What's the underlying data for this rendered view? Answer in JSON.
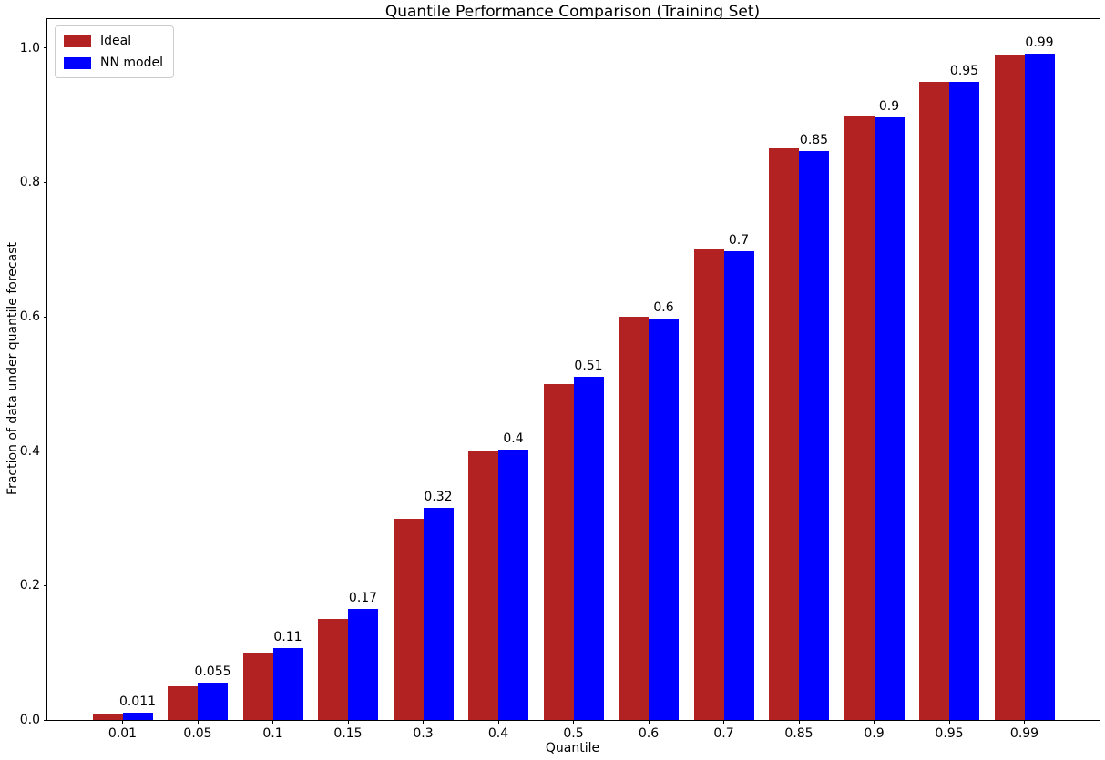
{
  "chart_data": {
    "type": "bar",
    "title": "Quantile Performance Comparison (Training Set)",
    "xlabel": "Quantile",
    "ylabel": "Fraction of data under quantile forecast",
    "categories": [
      "0.01",
      "0.05",
      "0.1",
      "0.15",
      "0.3",
      "0.4",
      "0.5",
      "0.6",
      "0.7",
      "0.85",
      "0.9",
      "0.95",
      "0.99"
    ],
    "series": [
      {
        "name": "Ideal",
        "color": "#b22222",
        "values": [
          0.01,
          0.05,
          0.1,
          0.15,
          0.3,
          0.4,
          0.5,
          0.6,
          0.7,
          0.85,
          0.9,
          0.95,
          0.99
        ]
      },
      {
        "name": "NN model",
        "color": "#0000ff",
        "values": [
          0.011,
          0.055,
          0.107,
          0.165,
          0.315,
          0.402,
          0.511,
          0.597,
          0.698,
          0.847,
          0.897,
          0.95,
          0.992
        ]
      }
    ],
    "bar_labels": [
      "0.011",
      "0.055",
      "0.11",
      "0.17",
      "0.32",
      "0.4",
      "0.51",
      "0.6",
      "0.7",
      "0.85",
      "0.9",
      "0.95",
      "0.99"
    ],
    "yticks": [
      "0.0",
      "0.2",
      "0.4",
      "0.6",
      "0.8",
      "1.0"
    ],
    "ylim": [
      0,
      1.043
    ],
    "legend_position": "upper-left",
    "grid": false,
    "background_color": "#ffffff",
    "annotation_color": "#000000"
  }
}
